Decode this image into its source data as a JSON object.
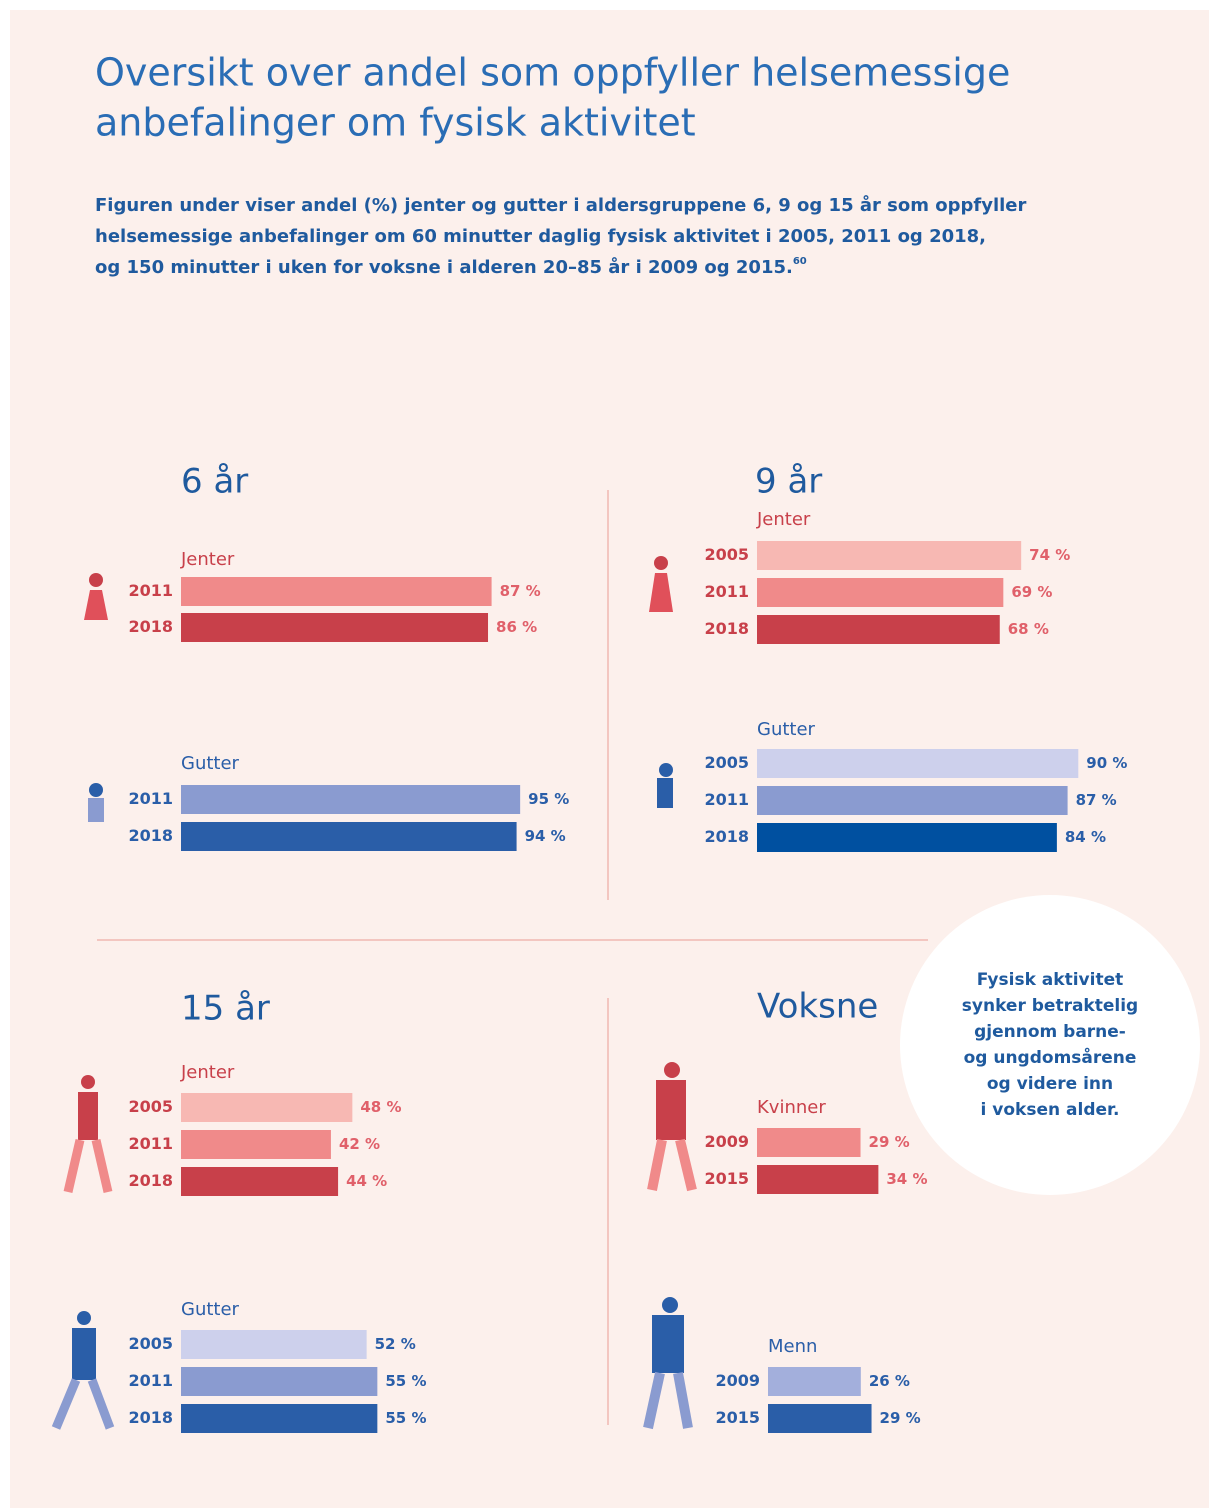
{
  "header": {
    "title_lines": [
      "Oversikt over andel som oppfyller helsemessige",
      "anbefalinger om fysisk aktivitet"
    ],
    "subtitle_lines": [
      "Figuren under viser andel (%) jenter og gutter i aldersgruppene 6, 9 og 15 år som oppfyller",
      "helsemessige anbefalinger om 60 minutter daglig fysisk aktivitet i 2005, 2011 og 2018,",
      "og 150 minutter i uken for voksne i alderen 20–85 år i 2009 og 2015."
    ],
    "footnote": "60"
  },
  "note_lines": [
    "Fysisk aktivitet",
    "synker betraktelig",
    "gjennom barne-",
    "og ungdomsårene",
    "og videre inn",
    "i voksen alder."
  ],
  "chart_data": [
    {
      "type": "bar",
      "title": "6 år",
      "groups": [
        {
          "name": "Jenter",
          "categories": [
            "2011",
            "2018"
          ],
          "values": [
            87,
            86
          ],
          "value_labels": [
            "87 %",
            "86 %"
          ],
          "colors": [
            "#f08a8a",
            "#c8404a"
          ]
        },
        {
          "name": "Gutter",
          "categories": [
            "2011",
            "2018"
          ],
          "values": [
            95,
            94
          ],
          "value_labels": [
            "95 %",
            "94 %"
          ],
          "colors": [
            "#8a9bd0",
            "#2a5ea8"
          ]
        }
      ]
    },
    {
      "type": "bar",
      "title": "9 år",
      "groups": [
        {
          "name": "Jenter",
          "categories": [
            "2005",
            "2011",
            "2018"
          ],
          "values": [
            74,
            69,
            68
          ],
          "value_labels": [
            "74 %",
            "69 %",
            "68 %"
          ],
          "colors": [
            "#f7b8b3",
            "#f08a8a",
            "#c8404a"
          ]
        },
        {
          "name": "Gutter",
          "categories": [
            "2005",
            "2011",
            "2018"
          ],
          "values": [
            90,
            87,
            84
          ],
          "value_labels": [
            "90 %",
            "87 %",
            "84 %"
          ],
          "colors": [
            "#cdd0ec",
            "#8a9bd0",
            "#0050a0"
          ]
        }
      ]
    },
    {
      "type": "bar",
      "title": "15 år",
      "groups": [
        {
          "name": "Jenter",
          "categories": [
            "2005",
            "2011",
            "2018"
          ],
          "values": [
            48,
            42,
            44
          ],
          "value_labels": [
            "48 %",
            "42 %",
            "44 %"
          ],
          "colors": [
            "#f7b8b3",
            "#f08a8a",
            "#c8404a"
          ]
        },
        {
          "name": "Gutter",
          "categories": [
            "2005",
            "2011",
            "2018"
          ],
          "values": [
            52,
            55,
            55
          ],
          "value_labels": [
            "52 %",
            "55 %",
            "55 %"
          ],
          "colors": [
            "#cdd0ec",
            "#8a9bd0",
            "#2a5ea8"
          ]
        }
      ]
    },
    {
      "type": "bar",
      "title": "Voksne",
      "groups": [
        {
          "name": "Kvinner",
          "categories": [
            "2009",
            "2015"
          ],
          "values": [
            29,
            34
          ],
          "value_labels": [
            "29 %",
            "34 %"
          ],
          "colors": [
            "#f08a8a",
            "#c8404a"
          ]
        },
        {
          "name": "Menn",
          "categories": [
            "2009",
            "2015"
          ],
          "values": [
            26,
            29
          ],
          "value_labels": [
            "26 %",
            "29 %"
          ],
          "colors": [
            "#a3afdc",
            "#2a5ea8"
          ]
        }
      ]
    }
  ]
}
